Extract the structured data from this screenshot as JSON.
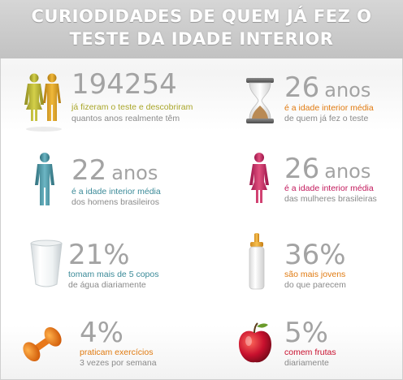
{
  "header": {
    "line1": "CURIODIDADES DE QUEM JÁ FEZ O",
    "line2": "TESTE DA IDADE INTERIOR"
  },
  "stats": [
    {
      "id": "total",
      "icon": "couple-icon",
      "value": "194254",
      "unit": "",
      "line1": "já fizeram o teste e descobriram",
      "line2": "quantos anos realmente têm",
      "accent": "#a9a62a"
    },
    {
      "id": "avg-all",
      "icon": "hourglass-icon",
      "value": "26",
      "unit": "anos",
      "line1": "é a idade interior média",
      "line2": "de quem já fez o teste",
      "accent": "#e07a10"
    },
    {
      "id": "avg-men",
      "icon": "man-icon",
      "value": "22",
      "unit": "anos",
      "line1": "é a idade interior média",
      "line2": "dos homens brasileiros",
      "accent": "#3b8a98"
    },
    {
      "id": "avg-women",
      "icon": "woman-icon",
      "value": "26",
      "unit": "anos",
      "line1": "é a idade interior média",
      "line2": "das mulheres brasileiras",
      "accent": "#c2185b"
    },
    {
      "id": "water",
      "icon": "water-glass-icon",
      "value": "21%",
      "unit": "",
      "line1": "tomam mais de 5 copos",
      "line2": "de água diariamente",
      "accent": "#3b8a98"
    },
    {
      "id": "younger",
      "icon": "baby-bottle-icon",
      "value": "36%",
      "unit": "",
      "line1": "são mais jovens",
      "line2": "do que parecem",
      "accent": "#e07a10"
    },
    {
      "id": "exercise",
      "icon": "dumbbell-icon",
      "value": "4%",
      "unit": "",
      "line1": "praticam exercícios",
      "line2": "3 vezes por semana",
      "accent": "#e07a10"
    },
    {
      "id": "fruit",
      "icon": "apple-icon",
      "value": "5%",
      "unit": "",
      "line1": "comem frutas",
      "line2": "diariamente",
      "accent": "#c8102e"
    }
  ]
}
